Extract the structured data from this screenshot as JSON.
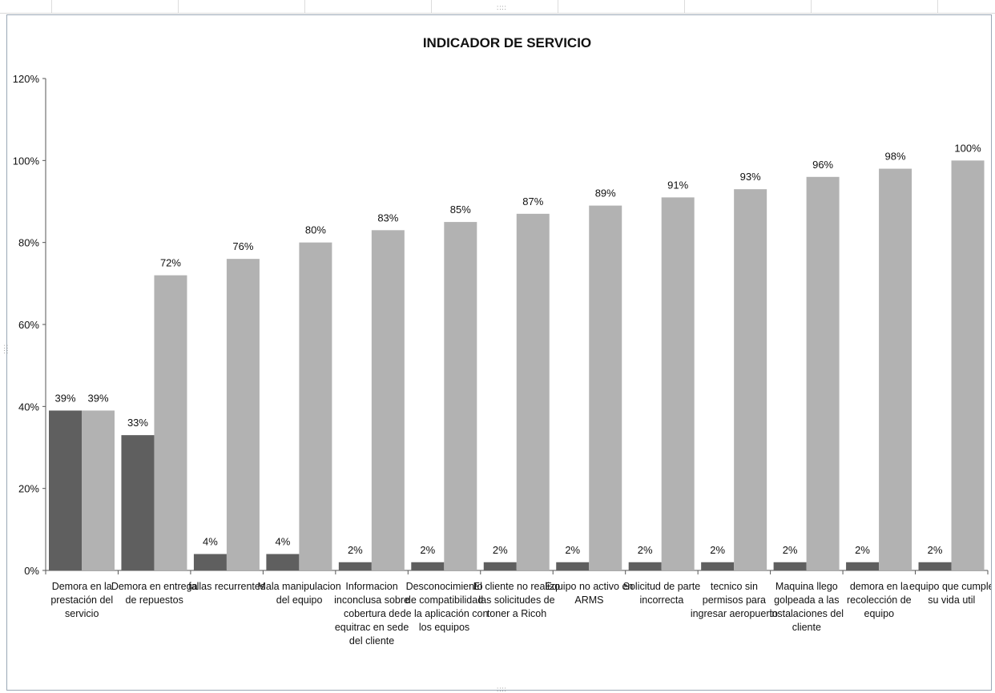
{
  "chart_data": {
    "type": "bar",
    "title": "INDICADOR DE SERVICIO",
    "xlabel": "",
    "ylabel": "",
    "ylim": [
      0,
      1.2
    ],
    "yticks": [
      "0%",
      "20%",
      "40%",
      "60%",
      "80%",
      "100%",
      "120%"
    ],
    "grid": false,
    "legend": "none",
    "categories": [
      "Demora en la prestación del servicio",
      "Demora en entrega de repuestos",
      "fallas recurrentes",
      "Mala manipulacion del equipo",
      "Informacion inconclusa sobre cobertura de equitrac en sede del cliente",
      "Desconocimiento de compatibilidad de la aplicación con los equipos",
      "El cliente no realizo las solicitudes de toner a Ricoh",
      "Equipo no activo en ARMS",
      "Solicitud de parte incorrecta",
      "tecnico sin permisos para ingresar aeropuerto",
      "Maquina llego golpeada a las instalaciones del cliente",
      "demora en la recolección de equipo",
      "equipo que cumple su vida util"
    ],
    "category_lines": [
      [
        "Demora en la",
        "prestación del",
        "servicio"
      ],
      [
        "Demora en entrega",
        "de repuestos"
      ],
      [
        "fallas recurrentes"
      ],
      [
        "Mala manipulacion",
        "del equipo"
      ],
      [
        "Informacion",
        "inconclusa sobre",
        "cobertura de",
        "equitrac en sede",
        "del cliente"
      ],
      [
        "Desconocimiento",
        "de compatibilidad",
        "de la aplicación con",
        "los equipos"
      ],
      [
        "El cliente no realizo",
        "las solicitudes de",
        "toner a Ricoh"
      ],
      [
        "Equipo no activo en",
        "ARMS"
      ],
      [
        "Solicitud de parte",
        "incorrecta"
      ],
      [
        "tecnico sin",
        "permisos para",
        "ingresar aeropuerto"
      ],
      [
        "Maquina llego",
        "golpeada a las",
        "instalaciones del",
        "cliente"
      ],
      [
        "demora en la",
        "recolección de",
        "equipo"
      ],
      [
        "equipo que cumple",
        "su vida util"
      ]
    ],
    "series": [
      {
        "values": [
          0.39,
          0.33,
          0.04,
          0.04,
          0.02,
          0.02,
          0.02,
          0.02,
          0.02,
          0.02,
          0.02,
          0.02,
          0.02
        ],
        "labels": [
          "39%",
          "33%",
          "4%",
          "4%",
          "2%",
          "2%",
          "2%",
          "2%",
          "2%",
          "2%",
          "2%",
          "2%",
          "2%"
        ],
        "color": "#5f5f5f"
      },
      {
        "values": [
          0.39,
          0.72,
          0.76,
          0.8,
          0.83,
          0.85,
          0.87,
          0.89,
          0.91,
          0.93,
          0.96,
          0.98,
          1.0
        ],
        "labels": [
          "39%",
          "72%",
          "76%",
          "80%",
          "83%",
          "85%",
          "87%",
          "89%",
          "91%",
          "93%",
          "96%",
          "98%",
          "100%"
        ],
        "color": "#b2b2b2"
      }
    ]
  }
}
